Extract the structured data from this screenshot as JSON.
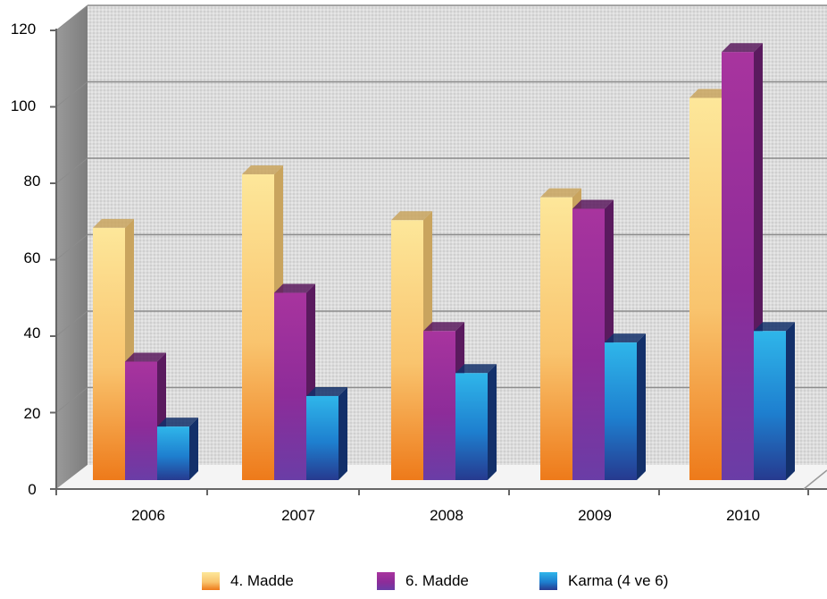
{
  "chart_data": {
    "type": "bar",
    "categories": [
      "2006",
      "2007",
      "2008",
      "2009",
      "2010"
    ],
    "series": [
      {
        "name": "4. Madde",
        "values": [
          66,
          80,
          68,
          74,
          100
        ],
        "color_top": "#fde79a",
        "color_mid": "#f9c46e",
        "color_bottom": "#ee7a1a",
        "color_side": "#c9a45e"
      },
      {
        "name": "6. Madde",
        "values": [
          31,
          49,
          39,
          71,
          112
        ],
        "color_top": "#a8349e",
        "color_mid": "#8d2c99",
        "color_bottom": "#6a3da6",
        "color_side": "#5a1a5e"
      },
      {
        "name": "Karma (4 ve 6)",
        "values": [
          14,
          22,
          28,
          36,
          39
        ],
        "color_top": "#2fb6ea",
        "color_mid": "#1e7fcf",
        "color_bottom": "#263a8f",
        "color_side": "#13306a"
      }
    ],
    "y_ticks": [
      "0",
      "20",
      "40",
      "60",
      "80",
      "100",
      "120"
    ],
    "ylim": [
      0,
      120
    ],
    "grid": true,
    "legend_position": "bottom"
  }
}
